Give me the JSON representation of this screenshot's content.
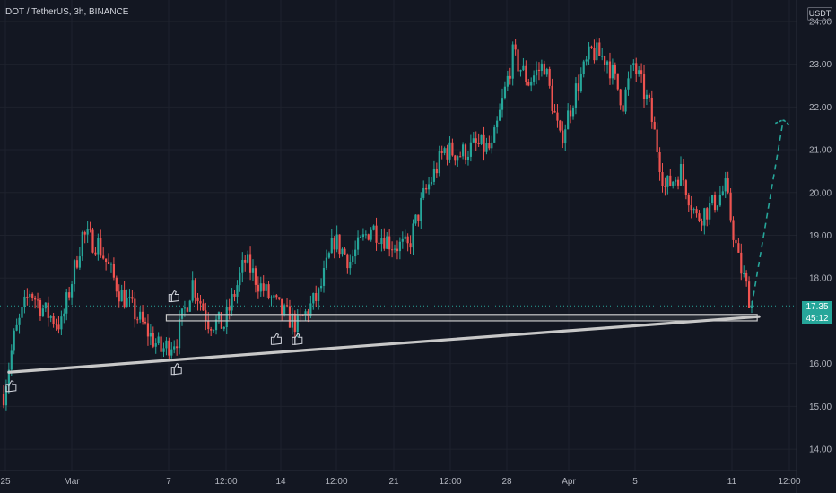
{
  "header": {
    "symbol": "DOT / TetherUS, 3h, BINANCE",
    "unit": "USDT"
  },
  "price_label": {
    "price": "17.35",
    "countdown": "45:12"
  },
  "colors": {
    "background": "#131722",
    "grid": "#1e222d",
    "up": "#26a69a",
    "down": "#ef5350",
    "text": "#b2b5be",
    "drawing": "#c8c8c8",
    "projection": "#26a69a"
  },
  "chart_data": {
    "type": "candlestick",
    "title": "DOT / TetherUS, 3h, BINANCE",
    "y_axis": {
      "ticks": [
        "24.00",
        "23.00",
        "22.00",
        "21.00",
        "20.00",
        "19.00",
        "18.00",
        "16.00",
        "15.00",
        "14.00"
      ],
      "min": 13.5,
      "max": 24.5,
      "unit": "USDT"
    },
    "x_axis": {
      "ticks": [
        "25",
        "Mar",
        "7",
        "12:00",
        "14",
        "12:00",
        "21",
        "12:00",
        "28",
        "Apr",
        "5",
        "11",
        "12:00"
      ]
    },
    "price_path": [
      {
        "i": 0,
        "p": 15.3
      },
      {
        "i": 4,
        "p": 16.6
      },
      {
        "i": 10,
        "p": 17.7
      },
      {
        "i": 16,
        "p": 17.2
      },
      {
        "i": 22,
        "p": 16.9
      },
      {
        "i": 30,
        "p": 19.0
      },
      {
        "i": 36,
        "p": 18.8
      },
      {
        "i": 44,
        "p": 17.7
      },
      {
        "i": 52,
        "p": 17.0
      },
      {
        "i": 60,
        "p": 16.3
      },
      {
        "i": 66,
        "p": 16.6
      },
      {
        "i": 72,
        "p": 17.9
      },
      {
        "i": 78,
        "p": 17.0
      },
      {
        "i": 84,
        "p": 16.9
      },
      {
        "i": 92,
        "p": 18.4
      },
      {
        "i": 98,
        "p": 17.8
      },
      {
        "i": 106,
        "p": 17.2
      },
      {
        "i": 112,
        "p": 16.9
      },
      {
        "i": 120,
        "p": 17.6
      },
      {
        "i": 126,
        "p": 18.9
      },
      {
        "i": 132,
        "p": 18.4
      },
      {
        "i": 140,
        "p": 19.2
      },
      {
        "i": 148,
        "p": 18.8
      },
      {
        "i": 154,
        "p": 18.7
      },
      {
        "i": 160,
        "p": 19.9
      },
      {
        "i": 168,
        "p": 21.0
      },
      {
        "i": 174,
        "p": 20.9
      },
      {
        "i": 180,
        "p": 21.1
      },
      {
        "i": 186,
        "p": 21.0
      },
      {
        "i": 194,
        "p": 23.2
      },
      {
        "i": 200,
        "p": 22.6
      },
      {
        "i": 206,
        "p": 23.0
      },
      {
        "i": 212,
        "p": 21.2
      },
      {
        "i": 218,
        "p": 22.4
      },
      {
        "i": 224,
        "p": 23.3
      },
      {
        "i": 230,
        "p": 23.1
      },
      {
        "i": 236,
        "p": 22.1
      },
      {
        "i": 240,
        "p": 23.0
      },
      {
        "i": 246,
        "p": 22.0
      },
      {
        "i": 252,
        "p": 20.1
      },
      {
        "i": 258,
        "p": 20.5
      },
      {
        "i": 264,
        "p": 19.4
      },
      {
        "i": 270,
        "p": 19.7
      },
      {
        "i": 275,
        "p": 20.1
      },
      {
        "i": 280,
        "p": 18.4
      },
      {
        "i": 285,
        "p": 17.35
      }
    ],
    "drawings": {
      "support_line": {
        "from": {
          "i": 2,
          "p": 15.8
        },
        "to": {
          "i": 283,
          "p": 17.1
        }
      },
      "support_zone": {
        "from_i": 62,
        "to_i": 283,
        "low": 17.0,
        "high": 17.15
      },
      "projection": {
        "from": {
          "i": 285,
          "p": 17.35
        },
        "to": {
          "i": 295,
          "p": 21.7
        }
      },
      "touch_markers": [
        {
          "i": 2,
          "p": 15.6
        },
        {
          "i": 64,
          "p": 17.7
        },
        {
          "i": 65,
          "p": 16.0
        },
        {
          "i": 103,
          "p": 16.7
        },
        {
          "i": 111,
          "p": 16.7
        }
      ]
    }
  }
}
